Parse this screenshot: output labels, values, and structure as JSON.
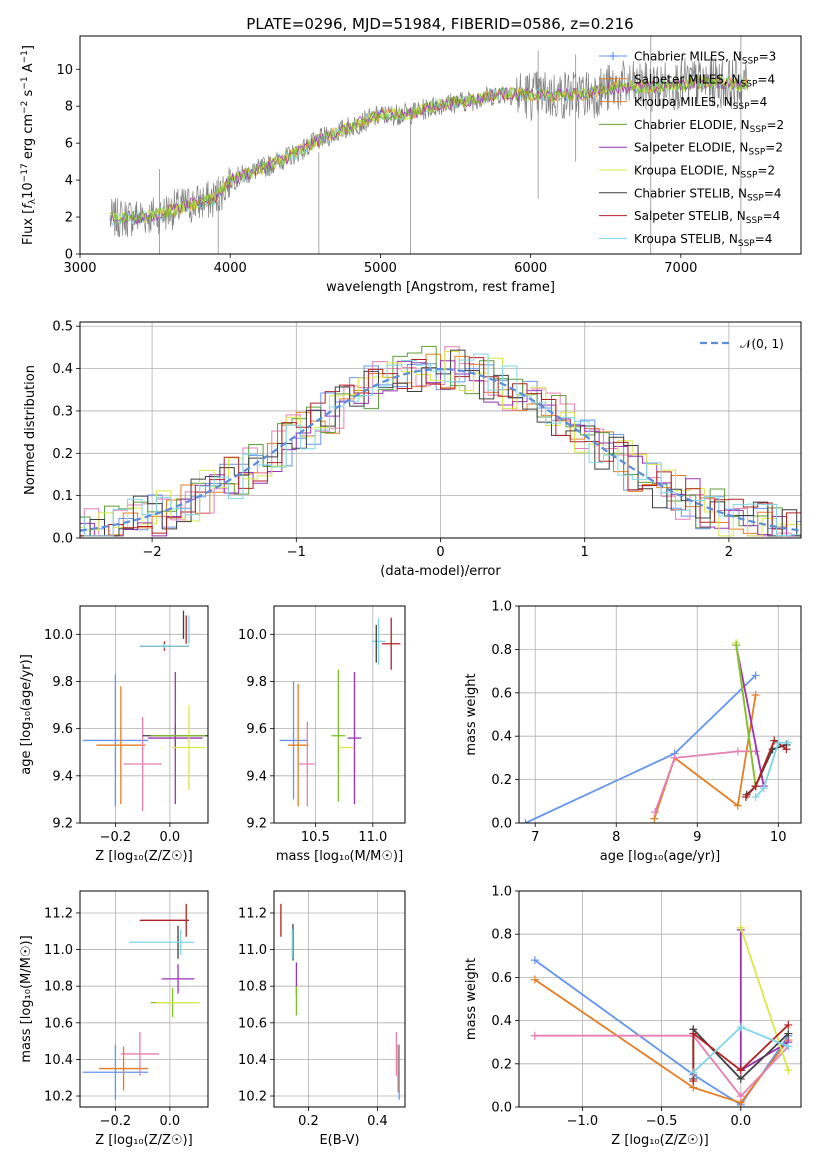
{
  "title": "PLATE=0296, MJD=51984, FIBERID=0586, z=0.216",
  "colors": {
    "Chabrier MILES": "#6495ed",
    "Salpeter MILES": "#e67d23",
    "Kroupa MILES": "#e67d23",
    "Chabrier ELODIE": "#5f9e3a",
    "Salpeter ELODIE": "#9b33b5",
    "Kroupa ELODIE": "#d8e84a",
    "Chabrier STELIB": "#3f3f3f",
    "Salpeter STELIB": "#b22222",
    "Kroupa STELIB": "#7fd6e6",
    "pink": "#e87fb2",
    "lime": "#7fbf2a",
    "data": "#808080"
  },
  "chart_data": [
    {
      "id": "spectrum",
      "type": "line",
      "title": "PLATE=0296, MJD=51984, FIBERID=0586, z=0.216",
      "xlabel": "wavelength [Angstrom, rest frame]",
      "ylabel_parts": {
        "pre": "Flux [",
        "fsym": "f",
        "fsub": "λ",
        "mid": "10",
        "exp": "−17",
        "post": " erg cm",
        "e2": "−2",
        "post2": " s",
        "e3": "−1",
        "post3": " A",
        "e4": "−1",
        "post4": "]"
      },
      "xlim": [
        3000,
        7800
      ],
      "ylim": [
        0,
        11.8
      ],
      "xticks": [
        3000,
        4000,
        5000,
        6000,
        7000
      ],
      "yticks": [
        0,
        2,
        4,
        6,
        8,
        10
      ],
      "grid": false,
      "legend_position": "top-right",
      "legend": [
        {
          "text": "Chabrier MILES, N",
          "sub": "SSP",
          "suffix": "=3",
          "color": "#6495ed",
          "marker": "+"
        },
        {
          "text": "Salpeter MILES, N",
          "sub": "SSP",
          "suffix": "=4",
          "color": "#e67d23",
          "marker": ""
        },
        {
          "text": "Kroupa MILES, N",
          "sub": "SSP",
          "suffix": "=4",
          "color": "#e67d23",
          "marker": ""
        },
        {
          "text": "Chabrier ELODIE, N",
          "sub": "SSP",
          "suffix": "=2",
          "color": "#5f9e3a",
          "marker": ""
        },
        {
          "text": "Salpeter ELODIE, N",
          "sub": "SSP",
          "suffix": "=2",
          "color": "#9b33b5",
          "marker": ""
        },
        {
          "text": "Kroupa ELODIE, N",
          "sub": "SSP",
          "suffix": "=2",
          "color": "#d8e84a",
          "marker": ""
        },
        {
          "text": "Chabrier STELIB, N",
          "sub": "SSP",
          "suffix": "=4",
          "color": "#3f3f3f",
          "marker": ""
        },
        {
          "text": "Salpeter STELIB, N",
          "sub": "SSP",
          "suffix": "=4",
          "color": "#b22222",
          "marker": ""
        },
        {
          "text": "Kroupa STELIB, N",
          "sub": "SSP",
          "suffix": "=4",
          "color": "#7fd6e6",
          "marker": ""
        }
      ],
      "continuum": [
        [
          3200,
          1.9
        ],
        [
          3500,
          2.1
        ],
        [
          3700,
          2.6
        ],
        [
          3900,
          3.0
        ],
        [
          4000,
          4.0
        ],
        [
          4200,
          4.6
        ],
        [
          4400,
          5.3
        ],
        [
          4600,
          6.2
        ],
        [
          4800,
          6.9
        ],
        [
          5000,
          7.5
        ],
        [
          5200,
          7.6
        ],
        [
          5400,
          8.1
        ],
        [
          5600,
          8.3
        ],
        [
          5800,
          8.7
        ],
        [
          6000,
          8.6
        ],
        [
          6200,
          8.6
        ],
        [
          6400,
          8.7
        ],
        [
          6600,
          9.1
        ],
        [
          6800,
          9.0
        ],
        [
          7000,
          9.2
        ],
        [
          7200,
          9.3
        ],
        [
          7400,
          9.2
        ]
      ]
    },
    {
      "id": "residuals",
      "type": "step",
      "xlabel": "(data-model)/error",
      "ylabel": "Normed distribution",
      "xlim": [
        -2.5,
        2.5
      ],
      "ylim": [
        0,
        0.51
      ],
      "xticks": [
        -2,
        -1,
        0,
        1,
        2
      ],
      "yticks": [
        0.0,
        0.1,
        0.2,
        0.3,
        0.4,
        0.5
      ],
      "grid": true,
      "legend_position": "top-right",
      "legend": [
        {
          "text": "𝒩(0, 1)",
          "color": "#5b8dd9",
          "style": "dashed"
        }
      ],
      "bin_width": 0.1,
      "reference_curve": "normal(0,1)"
    },
    {
      "id": "z_age",
      "type": "errorbar",
      "xlabel": "Z [log₁₀(Z/Z☉)]",
      "ylabel": "age  [log₁₀(age/yr)]",
      "xlim": [
        -0.33,
        0.14
      ],
      "ylim": [
        9.2,
        10.12
      ],
      "xticks": [
        -0.2,
        0.0
      ],
      "yticks": [
        9.2,
        9.4,
        9.6,
        9.8,
        10.0
      ],
      "grid": true,
      "points": [
        {
          "x": -0.02,
          "y": 9.95,
          "xerr": 0.09,
          "yerr": 0.02,
          "color": "#b22222"
        },
        {
          "x": -0.02,
          "y": 9.95,
          "xerr": 0.09,
          "yerr": 0.01,
          "color": "#3f3f3f"
        },
        {
          "x": -0.02,
          "y": 9.95,
          "xerr": 0.09,
          "yerr": 0.01,
          "color": "#7fd6e6"
        },
        {
          "x": 0.05,
          "y": 10.04,
          "xerr": 0.0,
          "yerr": 0.06,
          "color": "#3f3f3f"
        },
        {
          "x": 0.06,
          "y": 10.02,
          "xerr": 0.0,
          "yerr": 0.06,
          "color": "#b22222"
        },
        {
          "x": 0.07,
          "y": 10.02,
          "xerr": 0.0,
          "yerr": 0.06,
          "color": "#7fd6e6"
        },
        {
          "x": -0.2,
          "y": 9.55,
          "xerr": 0.12,
          "yerr": 0.28,
          "color": "#6495ed"
        },
        {
          "x": -0.18,
          "y": 9.53,
          "xerr": 0.09,
          "yerr": 0.25,
          "color": "#e67d23"
        },
        {
          "x": -0.1,
          "y": 9.45,
          "xerr": 0.07,
          "yerr": 0.2,
          "color": "#e87fb2"
        },
        {
          "x": 0.02,
          "y": 9.57,
          "xerr": 0.12,
          "yerr": 0.05,
          "color": "#3f3f3f"
        },
        {
          "x": 0.02,
          "y": 9.56,
          "xerr": 0.1,
          "yerr": 0.28,
          "color": "#9b33b5"
        },
        {
          "x": 0.07,
          "y": 9.52,
          "xerr": 0.06,
          "yerr": 0.18,
          "color": "#d8e84a"
        },
        {
          "x": 0.03,
          "y": 9.57,
          "xerr": 0.1,
          "yerr": 0.0,
          "color": "#7fbf2a"
        }
      ]
    },
    {
      "id": "mass_age",
      "type": "errorbar",
      "xlabel": "mass [log₁₀(M/M☉)]",
      "ylabel": "",
      "xlim": [
        10.14,
        11.28
      ],
      "ylim": [
        9.2,
        10.12
      ],
      "xticks": [
        10.5,
        11.0
      ],
      "yticks": [
        9.2,
        9.4,
        9.6,
        9.8,
        10.0
      ],
      "grid": true,
      "points": [
        {
          "x": 10.31,
          "y": 9.55,
          "xerr": 0.12,
          "yerr": 0.25,
          "color": "#6495ed"
        },
        {
          "x": 10.35,
          "y": 9.53,
          "xerr": 0.09,
          "yerr": 0.26,
          "color": "#e67d23"
        },
        {
          "x": 10.43,
          "y": 9.45,
          "xerr": 0.07,
          "yerr": 0.18,
          "color": "#e87fb2"
        },
        {
          "x": 10.7,
          "y": 9.57,
          "xerr": 0.06,
          "yerr": 0.28,
          "color": "#7fbf2a"
        },
        {
          "x": 10.84,
          "y": 9.56,
          "xerr": 0.06,
          "yerr": 0.28,
          "color": "#9b33b5"
        },
        {
          "x": 10.77,
          "y": 9.52,
          "xerr": 0.06,
          "yerr": 0.0,
          "color": "#d8e84a"
        },
        {
          "x": 11.05,
          "y": 9.97,
          "xerr": 0.06,
          "yerr": 0.1,
          "color": "#7fd6e6"
        },
        {
          "x": 11.03,
          "y": 9.96,
          "xerr": 0.0,
          "yerr": 0.08,
          "color": "#3f3f3f"
        },
        {
          "x": 11.16,
          "y": 9.96,
          "xerr": 0.08,
          "yerr": 0.11,
          "color": "#b22222"
        }
      ]
    },
    {
      "id": "age_weight",
      "type": "line",
      "xlabel": "age  [log₁₀(age/yr)]",
      "ylabel": "mass weight",
      "xlim": [
        6.8,
        10.28
      ],
      "ylim": [
        0,
        1.0
      ],
      "xticks": [
        7,
        8,
        9,
        10
      ],
      "yticks": [
        0.0,
        0.2,
        0.4,
        0.6,
        0.8,
        1.0
      ],
      "grid": true,
      "series": [
        {
          "color": "#6495ed",
          "x": [
            6.88,
            8.72,
            9.72
          ],
          "y": [
            0.0,
            0.32,
            0.68
          ]
        },
        {
          "color": "#e67d23",
          "x": [
            8.47,
            8.72,
            9.5,
            9.72
          ],
          "y": [
            0.02,
            0.3,
            0.08,
            0.59
          ]
        },
        {
          "color": "#e87fb2",
          "x": [
            8.48,
            8.72,
            9.5,
            9.72
          ],
          "y": [
            0.05,
            0.3,
            0.33,
            0.33
          ]
        },
        {
          "color": "#9b33b5",
          "x": [
            9.48,
            9.82
          ],
          "y": [
            0.82,
            0.17
          ]
        },
        {
          "color": "#d8e84a",
          "x": [
            9.48,
            9.72
          ],
          "y": [
            0.83,
            0.17
          ]
        },
        {
          "color": "#7fbf2a",
          "x": [
            9.48,
            9.72
          ],
          "y": [
            0.82,
            0.17
          ]
        },
        {
          "color": "#3f3f3f",
          "x": [
            9.61,
            9.72,
            9.93,
            10.1
          ],
          "y": [
            0.13,
            0.17,
            0.34,
            0.36
          ]
        },
        {
          "color": "#b22222",
          "x": [
            9.6,
            9.72,
            9.95,
            10.1
          ],
          "y": [
            0.12,
            0.17,
            0.38,
            0.34
          ]
        },
        {
          "color": "#7fd6e6",
          "x": [
            9.72,
            9.82,
            10.0,
            10.12
          ],
          "y": [
            0.12,
            0.16,
            0.37,
            0.37
          ]
        }
      ]
    },
    {
      "id": "z_mass",
      "type": "errorbar",
      "xlabel": "Z [log₁₀(Z/Z☉)]",
      "ylabel": "mass [log₁₀(M/M☉)]",
      "xlim": [
        -0.33,
        0.14
      ],
      "ylim": [
        10.14,
        11.32
      ],
      "xticks": [
        -0.2,
        0.0
      ],
      "yticks": [
        10.2,
        10.4,
        10.6,
        10.8,
        11.0,
        11.2
      ],
      "grid": true,
      "points": [
        {
          "x": -0.02,
          "y": 11.16,
          "xerr": 0.09,
          "yerr": 0.0,
          "color": "#b22222"
        },
        {
          "x": 0.06,
          "y": 11.16,
          "xerr": 0.0,
          "yerr": 0.09,
          "color": "#b22222"
        },
        {
          "x": 0.03,
          "y": 11.04,
          "xerr": 0.0,
          "yerr": 0.09,
          "color": "#3f3f3f"
        },
        {
          "x": -0.03,
          "y": 11.04,
          "xerr": 0.12,
          "yerr": 0.0,
          "color": "#7fd6e6"
        },
        {
          "x": 0.04,
          "y": 11.04,
          "xerr": 0.0,
          "yerr": 0.07,
          "color": "#7fd6e6"
        },
        {
          "x": 0.03,
          "y": 10.84,
          "xerr": 0.06,
          "yerr": 0.08,
          "color": "#9b33b5"
        },
        {
          "x": 0.01,
          "y": 10.71,
          "xerr": 0.08,
          "yerr": 0.08,
          "color": "#7fbf2a"
        },
        {
          "x": 0.03,
          "y": 10.71,
          "xerr": 0.08,
          "yerr": 0.0,
          "color": "#d8e84a"
        },
        {
          "x": -0.2,
          "y": 10.33,
          "xerr": 0.12,
          "yerr": 0.15,
          "color": "#6495ed"
        },
        {
          "x": -0.17,
          "y": 10.35,
          "xerr": 0.09,
          "yerr": 0.12,
          "color": "#e67d23"
        },
        {
          "x": -0.11,
          "y": 10.43,
          "xerr": 0.07,
          "yerr": 0.12,
          "color": "#e87fb2"
        }
      ]
    },
    {
      "id": "ebv_mass",
      "type": "errorbar",
      "xlabel": "E(B-V)",
      "ylabel": "",
      "xlim": [
        0.1,
        0.48
      ],
      "ylim": [
        10.14,
        11.32
      ],
      "xticks": [
        0.2,
        0.4
      ],
      "yticks": [
        10.2,
        10.4,
        10.6,
        10.8,
        11.0,
        11.2
      ],
      "grid": true,
      "points": [
        {
          "x": 0.12,
          "y": 11.16,
          "xerr": 0.0,
          "yerr": 0.09,
          "color": "#b22222"
        },
        {
          "x": 0.155,
          "y": 11.04,
          "xerr": 0.0,
          "yerr": 0.1,
          "color": "#3f3f3f"
        },
        {
          "x": 0.153,
          "y": 11.03,
          "xerr": 0.0,
          "yerr": 0.08,
          "color": "#7fd6e6"
        },
        {
          "x": 0.165,
          "y": 10.84,
          "xerr": 0.0,
          "yerr": 0.09,
          "color": "#9b33b5"
        },
        {
          "x": 0.165,
          "y": 10.72,
          "xerr": 0.0,
          "yerr": 0.08,
          "color": "#7fbf2a"
        },
        {
          "x": 0.455,
          "y": 10.43,
          "xerr": 0.0,
          "yerr": 0.12,
          "color": "#e87fb2"
        },
        {
          "x": 0.46,
          "y": 10.35,
          "xerr": 0.0,
          "yerr": 0.13,
          "color": "#e67d23"
        },
        {
          "x": 0.463,
          "y": 10.33,
          "xerr": 0.0,
          "yerr": 0.15,
          "color": "#6495ed"
        }
      ]
    },
    {
      "id": "z_weight",
      "type": "line",
      "xlabel": "Z [log₁₀(Z/Z☉)]",
      "ylabel": "mass weight",
      "xlim": [
        -1.4,
        0.38
      ],
      "ylim": [
        0,
        1.0
      ],
      "xticks": [
        -1.0,
        -0.5,
        0.0
      ],
      "yticks": [
        0.0,
        0.2,
        0.4,
        0.6,
        0.8,
        1.0
      ],
      "grid": true,
      "series": [
        {
          "color": "#6495ed",
          "x": [
            -1.3,
            -0.3,
            0.0,
            0.3
          ],
          "y": [
            0.68,
            0.15,
            0.01,
            0.33
          ]
        },
        {
          "color": "#e67d23",
          "x": [
            -1.3,
            -0.3,
            0.0,
            0.3
          ],
          "y": [
            0.59,
            0.09,
            0.02,
            0.31
          ]
        },
        {
          "color": "#e87fb2",
          "x": [
            -1.3,
            -0.3,
            0.0,
            0.3
          ],
          "y": [
            0.33,
            0.33,
            0.05,
            0.28
          ]
        },
        {
          "color": "#9b33b5",
          "x": [
            0.0,
            0.0,
            0.3
          ],
          "y": [
            0.82,
            0.17,
            0.3
          ]
        },
        {
          "color": "#d8e84a",
          "x": [
            0.0,
            0.3
          ],
          "y": [
            0.83,
            0.17
          ]
        },
        {
          "color": "#3f3f3f",
          "x": [
            -0.3,
            -0.3,
            0.0,
            0.3
          ],
          "y": [
            0.13,
            0.36,
            0.13,
            0.34
          ]
        },
        {
          "color": "#b22222",
          "x": [
            -0.3,
            -0.3,
            0.0,
            0.3
          ],
          "y": [
            0.12,
            0.34,
            0.17,
            0.38
          ]
        },
        {
          "color": "#7fd6e6",
          "x": [
            -0.3,
            0.0,
            0.3
          ],
          "y": [
            0.16,
            0.37,
            0.28
          ]
        }
      ]
    }
  ]
}
